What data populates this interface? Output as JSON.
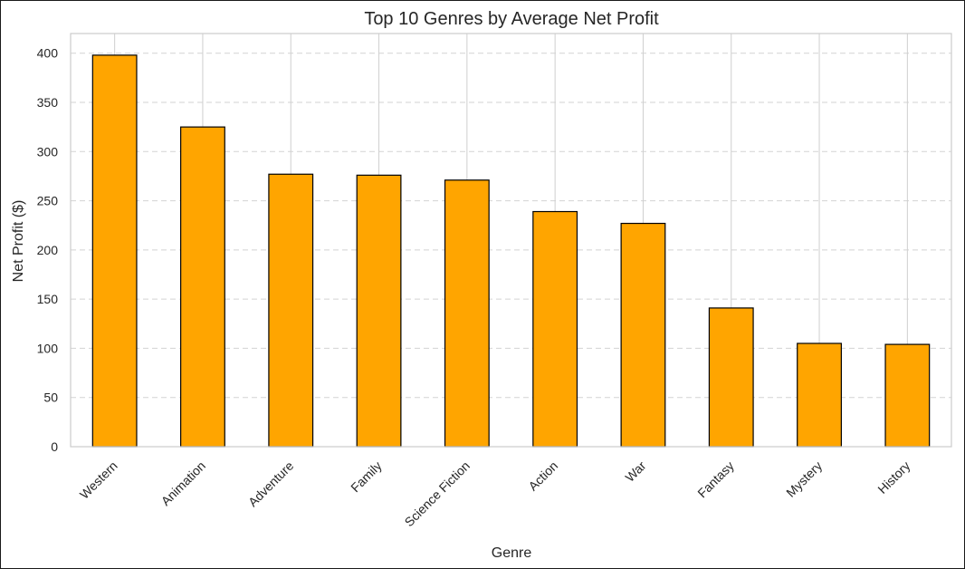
{
  "chart_data": {
    "type": "bar",
    "title": "Top 10 Genres by Average Net Profit",
    "xlabel": "Genre",
    "ylabel": "Net Profit ($)",
    "categories": [
      "Western",
      "Animation",
      "Adventure",
      "Family",
      "Science Fiction",
      "Action",
      "War",
      "Fantasy",
      "Mystery",
      "History"
    ],
    "values": [
      398,
      325,
      277,
      276,
      271,
      239,
      227,
      141,
      105,
      104
    ],
    "ylim": [
      0,
      420
    ],
    "yticks": [
      0,
      50,
      100,
      150,
      200,
      250,
      300,
      350,
      400
    ],
    "grid": true,
    "bar_color": "#FFA500",
    "bar_edge_color": "#000000"
  }
}
